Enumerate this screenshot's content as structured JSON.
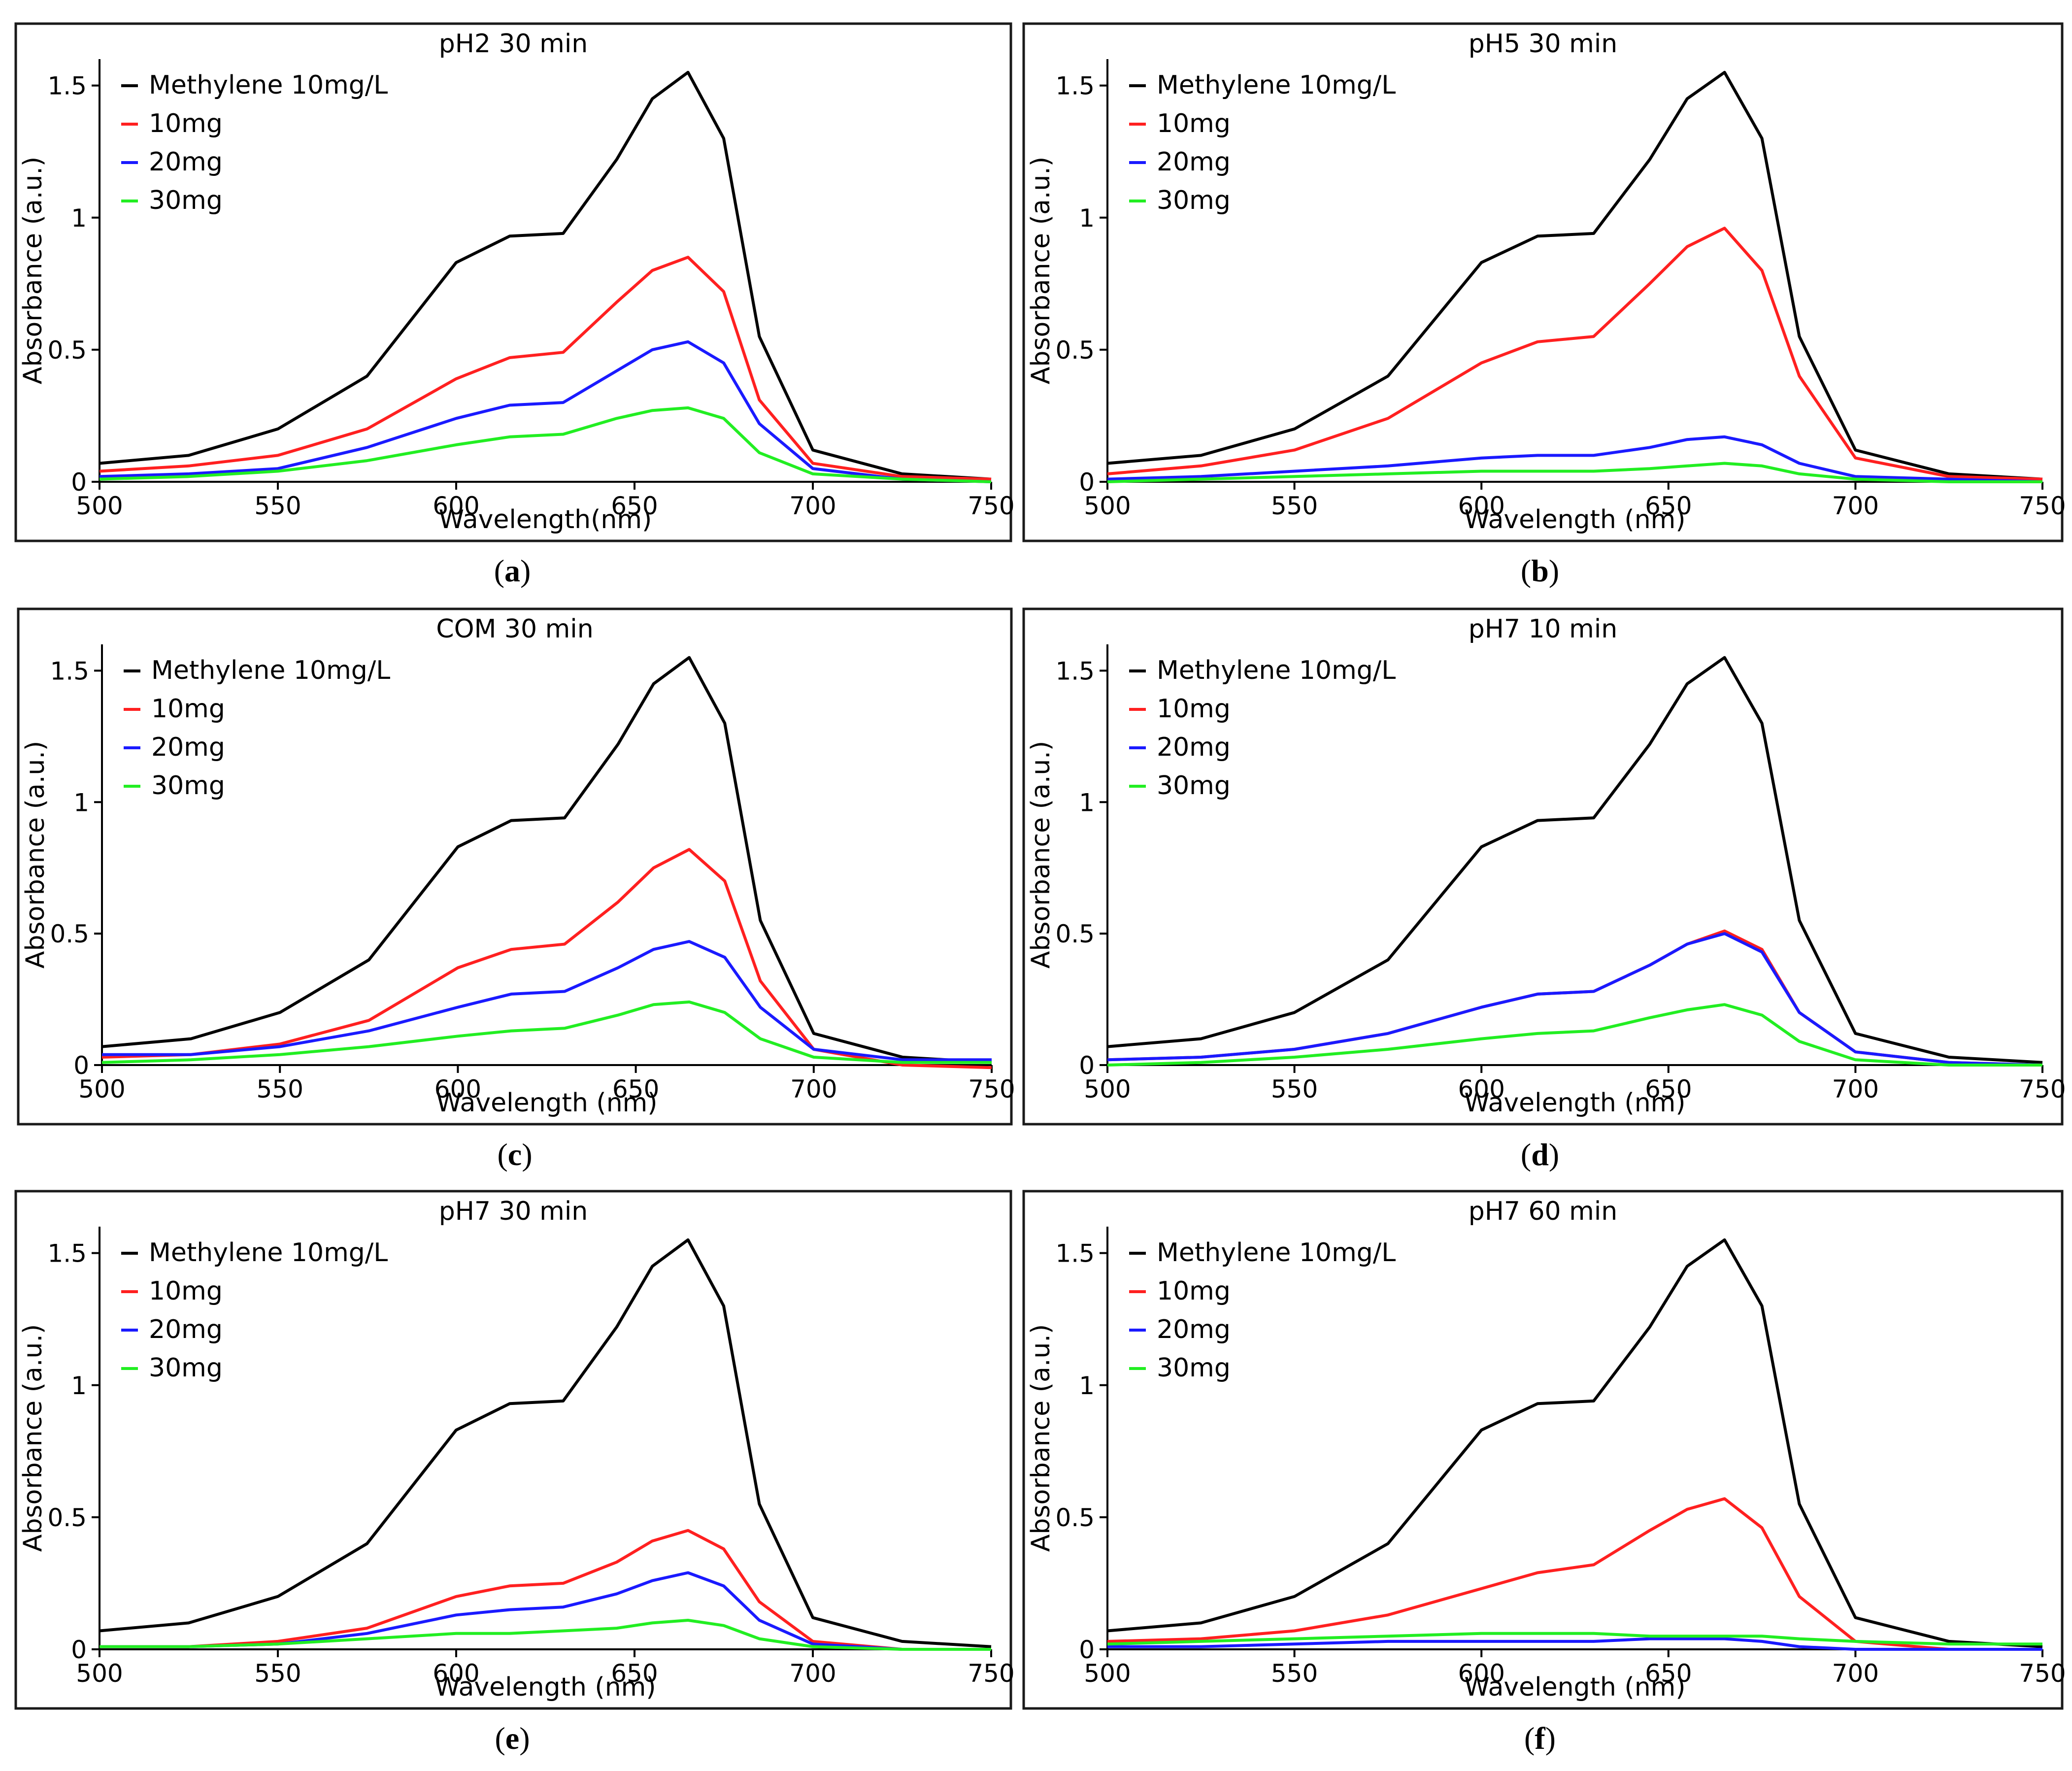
{
  "chart_data": [
    {
      "type": "line",
      "title": "pH2 30 min",
      "xlabel": "Wavelength(nm)",
      "ylabel": "Absorbance (a.u.)",
      "xlim": [
        500,
        750
      ],
      "ylim": [
        0,
        1.6
      ],
      "x_ticks": [
        "500",
        "550",
        "600",
        "650",
        "700",
        "750"
      ],
      "y_ticks": [
        "0",
        "0.5",
        "1",
        "1.5"
      ],
      "x_tick_values": [
        500,
        550,
        600,
        650,
        700,
        750
      ],
      "y_tick_values": [
        0,
        0.5,
        1,
        1.5
      ],
      "legend_position": "top-left",
      "subfigure_label": "a",
      "x": [
        500,
        525,
        550,
        575,
        600,
        615,
        630,
        645,
        655,
        665,
        675,
        685,
        700,
        725,
        750
      ],
      "series": [
        {
          "name": "Methylene 10mg/L",
          "color": "#000000",
          "values": [
            0.07,
            0.1,
            0.2,
            0.4,
            0.83,
            0.93,
            0.94,
            1.22,
            1.45,
            1.55,
            1.3,
            0.55,
            0.12,
            0.03,
            0.01
          ]
        },
        {
          "name": "10mg",
          "color": "#ff2020",
          "values": [
            0.04,
            0.06,
            0.1,
            0.2,
            0.39,
            0.47,
            0.49,
            0.68,
            0.8,
            0.85,
            0.72,
            0.31,
            0.07,
            0.02,
            0.01
          ]
        },
        {
          "name": "20mg",
          "color": "#1a1aff",
          "values": [
            0.02,
            0.03,
            0.05,
            0.13,
            0.24,
            0.29,
            0.3,
            0.42,
            0.5,
            0.53,
            0.45,
            0.22,
            0.05,
            0.01,
            0.0
          ]
        },
        {
          "name": "30mg",
          "color": "#22ee22",
          "values": [
            0.01,
            0.02,
            0.04,
            0.08,
            0.14,
            0.17,
            0.18,
            0.24,
            0.27,
            0.28,
            0.24,
            0.11,
            0.03,
            0.01,
            0.0
          ]
        }
      ]
    },
    {
      "type": "line",
      "title": "pH5 30 min",
      "xlabel": "Wavelength (nm)",
      "ylabel": "Absorbance (a.u.)",
      "xlim": [
        500,
        750
      ],
      "ylim": [
        0,
        1.6
      ],
      "x_ticks": [
        "500",
        "550",
        "600",
        "650",
        "700",
        "750"
      ],
      "y_ticks": [
        "0",
        "0.5",
        "1",
        "1.5"
      ],
      "x_tick_values": [
        500,
        550,
        600,
        650,
        700,
        750
      ],
      "y_tick_values": [
        0,
        0.5,
        1,
        1.5
      ],
      "legend_position": "top-left",
      "subfigure_label": "b",
      "x": [
        500,
        525,
        550,
        575,
        600,
        615,
        630,
        645,
        655,
        665,
        675,
        685,
        700,
        725,
        750
      ],
      "series": [
        {
          "name": "Methylene 10mg/L",
          "color": "#000000",
          "values": [
            0.07,
            0.1,
            0.2,
            0.4,
            0.83,
            0.93,
            0.94,
            1.22,
            1.45,
            1.55,
            1.3,
            0.55,
            0.12,
            0.03,
            0.01
          ]
        },
        {
          "name": "10mg",
          "color": "#ff2020",
          "values": [
            0.03,
            0.06,
            0.12,
            0.24,
            0.45,
            0.53,
            0.55,
            0.75,
            0.89,
            0.96,
            0.8,
            0.4,
            0.09,
            0.02,
            0.01
          ]
        },
        {
          "name": "20mg",
          "color": "#1a1aff",
          "values": [
            0.01,
            0.02,
            0.04,
            0.06,
            0.09,
            0.1,
            0.1,
            0.13,
            0.16,
            0.17,
            0.14,
            0.07,
            0.02,
            0.01,
            0.0
          ]
        },
        {
          "name": "30mg",
          "color": "#22ee22",
          "values": [
            0.0,
            0.01,
            0.02,
            0.03,
            0.04,
            0.04,
            0.04,
            0.05,
            0.06,
            0.07,
            0.06,
            0.03,
            0.01,
            0.0,
            0.0
          ]
        }
      ]
    },
    {
      "type": "line",
      "title": "COM 30 min",
      "xlabel": "Wavelength (nm)",
      "ylabel": "Absorbance (a.u.)",
      "xlim": [
        500,
        750
      ],
      "ylim": [
        0,
        1.6
      ],
      "x_ticks": [
        "500",
        "550",
        "600",
        "650",
        "700",
        "750"
      ],
      "y_ticks": [
        "0",
        "0.5",
        "1",
        "1.5"
      ],
      "x_tick_values": [
        500,
        550,
        600,
        650,
        700,
        750
      ],
      "y_tick_values": [
        0,
        0.5,
        1,
        1.5
      ],
      "legend_position": "top-left",
      "subfigure_label": "c",
      "x": [
        500,
        525,
        550,
        575,
        600,
        615,
        630,
        645,
        655,
        665,
        675,
        685,
        700,
        725,
        750
      ],
      "series": [
        {
          "name": "Methylene 10mg/L",
          "color": "#000000",
          "values": [
            0.07,
            0.1,
            0.2,
            0.4,
            0.83,
            0.93,
            0.94,
            1.22,
            1.45,
            1.55,
            1.3,
            0.55,
            0.12,
            0.03,
            0.01
          ]
        },
        {
          "name": "10mg",
          "color": "#ff2020",
          "values": [
            0.03,
            0.04,
            0.08,
            0.17,
            0.37,
            0.44,
            0.46,
            0.62,
            0.75,
            0.82,
            0.7,
            0.32,
            0.06,
            0.0,
            -0.01
          ]
        },
        {
          "name": "20mg",
          "color": "#1a1aff",
          "values": [
            0.04,
            0.04,
            0.07,
            0.13,
            0.22,
            0.27,
            0.28,
            0.37,
            0.44,
            0.47,
            0.41,
            0.22,
            0.06,
            0.02,
            0.02
          ]
        },
        {
          "name": "30mg",
          "color": "#22ee22",
          "values": [
            0.01,
            0.02,
            0.04,
            0.07,
            0.11,
            0.13,
            0.14,
            0.19,
            0.23,
            0.24,
            0.2,
            0.1,
            0.03,
            0.01,
            0.01
          ]
        }
      ]
    },
    {
      "type": "line",
      "title": "pH7 10 min",
      "xlabel": "Wavelength (nm)",
      "ylabel": "Absorbance (a.u.)",
      "xlim": [
        500,
        750
      ],
      "ylim": [
        0,
        1.6
      ],
      "x_ticks": [
        "500",
        "550",
        "600",
        "650",
        "700",
        "750"
      ],
      "y_ticks": [
        "0",
        "0.5",
        "1",
        "1.5"
      ],
      "x_tick_values": [
        500,
        550,
        600,
        650,
        700,
        750
      ],
      "y_tick_values": [
        0,
        0.5,
        1,
        1.5
      ],
      "legend_position": "top-left",
      "subfigure_label": "d",
      "x": [
        500,
        525,
        550,
        575,
        600,
        615,
        630,
        645,
        655,
        665,
        675,
        685,
        700,
        725,
        750
      ],
      "series": [
        {
          "name": "Methylene 10mg/L",
          "color": "#000000",
          "values": [
            0.07,
            0.1,
            0.2,
            0.4,
            0.83,
            0.93,
            0.94,
            1.22,
            1.45,
            1.55,
            1.3,
            0.55,
            0.12,
            0.03,
            0.01
          ]
        },
        {
          "name": "10mg",
          "color": "#ff2020",
          "values": [
            0.02,
            0.03,
            0.06,
            0.12,
            0.22,
            0.27,
            0.28,
            0.38,
            0.46,
            0.51,
            0.44,
            0.2,
            0.05,
            0.01,
            0.0
          ]
        },
        {
          "name": "20mg",
          "color": "#1a1aff",
          "values": [
            0.02,
            0.03,
            0.06,
            0.12,
            0.22,
            0.27,
            0.28,
            0.38,
            0.46,
            0.5,
            0.43,
            0.2,
            0.05,
            0.01,
            0.0
          ]
        },
        {
          "name": "30mg",
          "color": "#22ee22",
          "values": [
            0.0,
            0.01,
            0.03,
            0.06,
            0.1,
            0.12,
            0.13,
            0.18,
            0.21,
            0.23,
            0.19,
            0.09,
            0.02,
            0.0,
            0.0
          ]
        }
      ]
    },
    {
      "type": "line",
      "title": "pH7 30 min",
      "xlabel": "Wavelength (nm)",
      "ylabel": "Absorbance (a.u.)",
      "xlim": [
        500,
        750
      ],
      "ylim": [
        0,
        1.6
      ],
      "x_ticks": [
        "500",
        "550",
        "600",
        "650",
        "700",
        "750"
      ],
      "y_ticks": [
        "0",
        "0.5",
        "1",
        "1.5"
      ],
      "x_tick_values": [
        500,
        550,
        600,
        650,
        700,
        750
      ],
      "y_tick_values": [
        0,
        0.5,
        1,
        1.5
      ],
      "legend_position": "top-left",
      "subfigure_label": "e",
      "x": [
        500,
        525,
        550,
        575,
        600,
        615,
        630,
        645,
        655,
        665,
        675,
        685,
        700,
        725,
        750
      ],
      "series": [
        {
          "name": "Methylene 10mg/L",
          "color": "#000000",
          "values": [
            0.07,
            0.1,
            0.2,
            0.4,
            0.83,
            0.93,
            0.94,
            1.22,
            1.45,
            1.55,
            1.3,
            0.55,
            0.12,
            0.03,
            0.01
          ]
        },
        {
          "name": "10mg",
          "color": "#ff2020",
          "values": [
            0.01,
            0.01,
            0.03,
            0.08,
            0.2,
            0.24,
            0.25,
            0.33,
            0.41,
            0.45,
            0.38,
            0.18,
            0.03,
            0.0,
            0.0
          ]
        },
        {
          "name": "20mg",
          "color": "#1a1aff",
          "values": [
            0.01,
            0.01,
            0.02,
            0.06,
            0.13,
            0.15,
            0.16,
            0.21,
            0.26,
            0.29,
            0.24,
            0.11,
            0.02,
            0.0,
            0.0
          ]
        },
        {
          "name": "30mg",
          "color": "#22ee22",
          "values": [
            0.01,
            0.01,
            0.02,
            0.04,
            0.06,
            0.06,
            0.07,
            0.08,
            0.1,
            0.11,
            0.09,
            0.04,
            0.01,
            0.0,
            0.0
          ]
        }
      ]
    },
    {
      "type": "line",
      "title": "pH7 60 min",
      "xlabel": "Wavelength (nm)",
      "ylabel": "Absorbance (a.u.)",
      "xlim": [
        500,
        750
      ],
      "ylim": [
        0,
        1.6
      ],
      "x_ticks": [
        "500",
        "550",
        "600",
        "650",
        "700",
        "750"
      ],
      "y_ticks": [
        "0",
        "0.5",
        "1",
        "1.5"
      ],
      "x_tick_values": [
        500,
        550,
        600,
        650,
        700,
        750
      ],
      "y_tick_values": [
        0,
        0.5,
        1,
        1.5
      ],
      "legend_position": "top-left",
      "subfigure_label": "f",
      "x": [
        500,
        525,
        550,
        575,
        600,
        615,
        630,
        645,
        655,
        665,
        675,
        685,
        700,
        725,
        750
      ],
      "series": [
        {
          "name": "Methylene 10mg/L",
          "color": "#000000",
          "values": [
            0.07,
            0.1,
            0.2,
            0.4,
            0.83,
            0.93,
            0.94,
            1.22,
            1.45,
            1.55,
            1.3,
            0.55,
            0.12,
            0.03,
            0.01
          ]
        },
        {
          "name": "10mg",
          "color": "#ff2020",
          "values": [
            0.03,
            0.04,
            0.07,
            0.13,
            0.23,
            0.29,
            0.32,
            0.45,
            0.53,
            0.57,
            0.46,
            0.2,
            0.03,
            0.0,
            0.0
          ]
        },
        {
          "name": "20mg",
          "color": "#1a1aff",
          "values": [
            0.01,
            0.01,
            0.02,
            0.03,
            0.03,
            0.03,
            0.03,
            0.04,
            0.04,
            0.04,
            0.03,
            0.01,
            0.0,
            0.0,
            0.0
          ]
        },
        {
          "name": "30mg",
          "color": "#22ee22",
          "values": [
            0.02,
            0.03,
            0.04,
            0.05,
            0.06,
            0.06,
            0.06,
            0.05,
            0.05,
            0.05,
            0.05,
            0.04,
            0.03,
            0.02,
            0.02
          ]
        }
      ]
    }
  ]
}
